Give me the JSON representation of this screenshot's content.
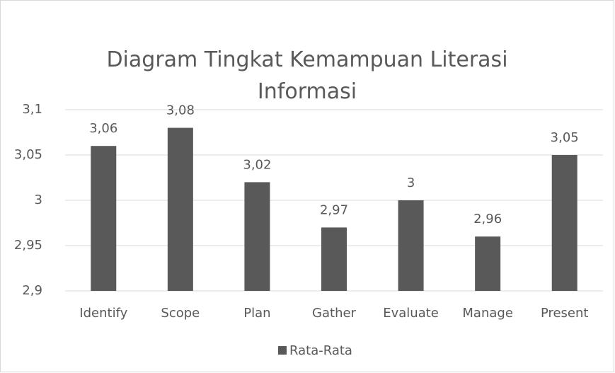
{
  "chart_data": {
    "type": "bar",
    "title": "Diagram Tingkat Kemampuan Literasi Informasi",
    "categories": [
      "Identify",
      "Scope",
      "Plan",
      "Gather",
      "Evaluate",
      "Manage",
      "Present"
    ],
    "series": [
      {
        "name": "Rata-Rata",
        "color": "#595959",
        "values": [
          3.06,
          3.08,
          3.02,
          2.97,
          3,
          2.96,
          3.05
        ],
        "value_labels": [
          "3,06",
          "3,08",
          "3,02",
          "2,97",
          "3",
          "2,96",
          "3,05"
        ]
      }
    ],
    "ylim": [
      2.9,
      3.1
    ],
    "yticks": [
      {
        "value": 2.9,
        "label": "2,9"
      },
      {
        "value": 2.95,
        "label": "2,95"
      },
      {
        "value": 3,
        "label": "3"
      },
      {
        "value": 3.05,
        "label": "3,05"
      },
      {
        "value": 3.1,
        "label": "3,1"
      }
    ],
    "grid": true,
    "legend": "bottom"
  }
}
